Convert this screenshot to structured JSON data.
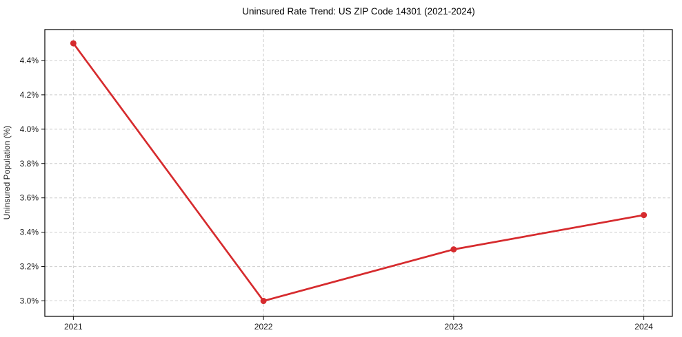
{
  "chart_data": {
    "type": "line",
    "title": "Uninsured Rate Trend: US ZIP Code 14301 (2021-2024)",
    "xlabel": "",
    "ylabel": "Uninsured Population (%)",
    "x": [
      2021,
      2022,
      2023,
      2024
    ],
    "categories": [
      "2021",
      "2022",
      "2023",
      "2024"
    ],
    "series": [
      {
        "name": "uninsured-rate",
        "values": [
          4.5,
          3.0,
          3.3,
          3.5
        ]
      }
    ],
    "x_tick_labels": [
      "2021",
      "2022",
      "2023",
      "2024"
    ],
    "y_ticks": [
      3.0,
      3.2,
      3.4,
      3.6,
      3.8,
      4.0,
      4.2,
      4.4
    ],
    "y_tick_labels": [
      "3.0%",
      "3.2%",
      "3.4%",
      "3.6%",
      "3.8%",
      "4.0%",
      "4.2%",
      "4.4%"
    ],
    "xlim": [
      2020.85,
      2024.15
    ],
    "ylim": [
      2.91,
      4.58
    ],
    "grid": true,
    "grid_style": "dashed",
    "legend_position": "none",
    "colors": {
      "line": "#d62b2e",
      "marker": "#d62b2e",
      "grid": "#cccccc",
      "spine": "#000000",
      "tick_text": "#1a1a1a",
      "title_text": "#000000",
      "background": "#ffffff"
    }
  }
}
